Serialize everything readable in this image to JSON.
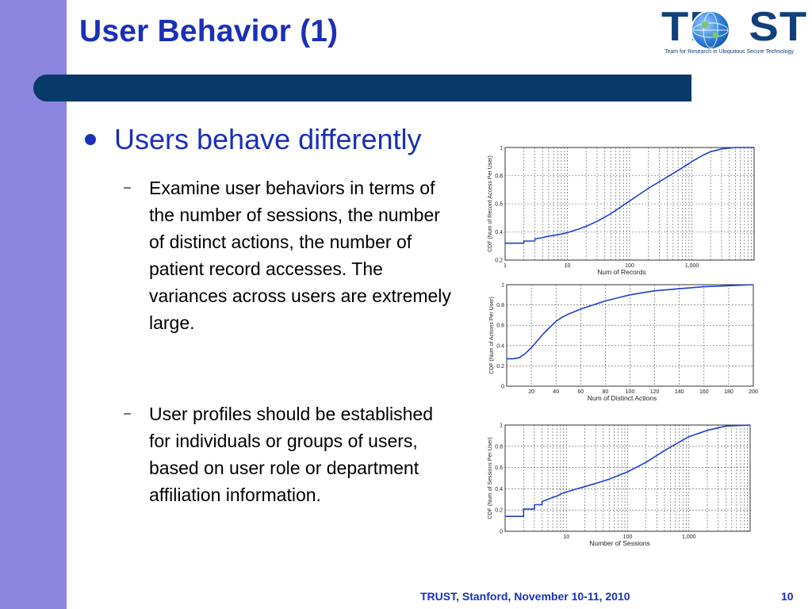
{
  "slide": {
    "title": "User Behavior (1)",
    "accent_color": "#1a30b8",
    "band_color": "#8c86e0",
    "bar_color": "#073a68"
  },
  "logo": {
    "text": "TR  ST",
    "subtitle": "Team for Research in Ubiquitous Secure Technology",
    "icon": "globe-icon"
  },
  "content": {
    "bullet": "Users behave differently",
    "sub1_dash": "–",
    "sub1": "Examine user behaviors in terms of the number of sessions, the number of distinct actions, the number of patient record accesses. The variances across users are extremely large.",
    "sub2_dash": "–",
    "sub2": "User profiles should be established for individuals or groups of users, based on user role or department affiliation information."
  },
  "footer": {
    "text": "TRUST, Stanford, November 10-11, 2010",
    "page": "10"
  },
  "chart_data": [
    {
      "type": "line",
      "xscale": "log",
      "xlabel": "Num of Records",
      "ylabel": "CDF (Num of Record Access Per User)",
      "xlim": [
        1,
        10000
      ],
      "ylim": [
        0.2,
        1
      ],
      "xticks": [
        {
          "v": 1,
          "l": "1"
        },
        {
          "v": 10,
          "l": "10"
        },
        {
          "v": 100,
          "l": "100"
        },
        {
          "v": 1000,
          "l": "1,000"
        }
      ],
      "yticks": [
        {
          "v": 0.2,
          "l": "0.2"
        },
        {
          "v": 0.4,
          "l": "0.4"
        },
        {
          "v": 0.6,
          "l": "0.6"
        },
        {
          "v": 0.8,
          "l": "0.8"
        },
        {
          "v": 1,
          "l": "1"
        }
      ],
      "grid": true,
      "color": "#1f3fd0",
      "x": [
        1,
        2,
        2,
        3,
        3,
        4,
        5,
        6,
        8,
        10,
        15,
        20,
        30,
        50,
        100,
        200,
        400,
        700,
        1000,
        1500,
        2000,
        3000,
        5000,
        10000
      ],
      "y": [
        0.32,
        0.32,
        0.335,
        0.335,
        0.35,
        0.36,
        0.37,
        0.375,
        0.385,
        0.395,
        0.42,
        0.44,
        0.475,
        0.53,
        0.62,
        0.71,
        0.79,
        0.855,
        0.9,
        0.945,
        0.97,
        0.99,
        1.0,
        1.0
      ]
    },
    {
      "type": "line",
      "xscale": "linear",
      "xlabel": "Num of Distinct Actions",
      "ylabel": "CDF (Num of Actions Per User)",
      "xlim": [
        0,
        200
      ],
      "ylim": [
        0,
        1
      ],
      "xticks": [
        {
          "v": 20,
          "l": "20"
        },
        {
          "v": 40,
          "l": "40"
        },
        {
          "v": 60,
          "l": "60"
        },
        {
          "v": 80,
          "l": "80"
        },
        {
          "v": 100,
          "l": "100"
        },
        {
          "v": 120,
          "l": "120"
        },
        {
          "v": 140,
          "l": "140"
        },
        {
          "v": 160,
          "l": "160"
        },
        {
          "v": 180,
          "l": "180"
        },
        {
          "v": 200,
          "l": "200"
        }
      ],
      "yticks": [
        {
          "v": 0,
          "l": "0"
        },
        {
          "v": 0.2,
          "l": "0.2"
        },
        {
          "v": 0.4,
          "l": "0.4"
        },
        {
          "v": 0.6,
          "l": "0.6"
        },
        {
          "v": 0.8,
          "l": "0.8"
        },
        {
          "v": 1,
          "l": "1"
        }
      ],
      "grid": true,
      "color": "#1f3fd0",
      "x": [
        0,
        5,
        10,
        15,
        20,
        25,
        30,
        35,
        40,
        45,
        50,
        60,
        70,
        80,
        90,
        100,
        110,
        120,
        130,
        140,
        150,
        160,
        180,
        200
      ],
      "y": [
        0.27,
        0.27,
        0.28,
        0.32,
        0.38,
        0.45,
        0.52,
        0.58,
        0.64,
        0.68,
        0.71,
        0.76,
        0.8,
        0.84,
        0.87,
        0.9,
        0.92,
        0.94,
        0.95,
        0.96,
        0.97,
        0.98,
        0.99,
        1.0
      ]
    },
    {
      "type": "line",
      "xscale": "log",
      "xlabel": "Number of Sessions",
      "ylabel": "CDF (Num of Sessions Per User)",
      "xlim": [
        1,
        10000
      ],
      "ylim": [
        0,
        1
      ],
      "xticks": [
        {
          "v": 10,
          "l": "10"
        },
        {
          "v": 100,
          "l": "100"
        },
        {
          "v": 1000,
          "l": "1,000"
        }
      ],
      "yticks": [
        {
          "v": 0,
          "l": "0"
        },
        {
          "v": 0.2,
          "l": "0.2"
        },
        {
          "v": 0.4,
          "l": "0.4"
        },
        {
          "v": 0.6,
          "l": "0.6"
        },
        {
          "v": 0.8,
          "l": "0.8"
        },
        {
          "v": 1,
          "l": "1"
        }
      ],
      "grid": true,
      "color": "#1f3fd0",
      "x": [
        1,
        2,
        2,
        3,
        3,
        4,
        4,
        5,
        6,
        7,
        8,
        10,
        15,
        20,
        30,
        50,
        100,
        200,
        400,
        700,
        1000,
        2000,
        4000,
        10000
      ],
      "y": [
        0.14,
        0.14,
        0.21,
        0.21,
        0.25,
        0.25,
        0.28,
        0.3,
        0.32,
        0.33,
        0.35,
        0.37,
        0.4,
        0.42,
        0.45,
        0.49,
        0.56,
        0.65,
        0.76,
        0.84,
        0.89,
        0.95,
        0.99,
        1.0
      ]
    }
  ]
}
